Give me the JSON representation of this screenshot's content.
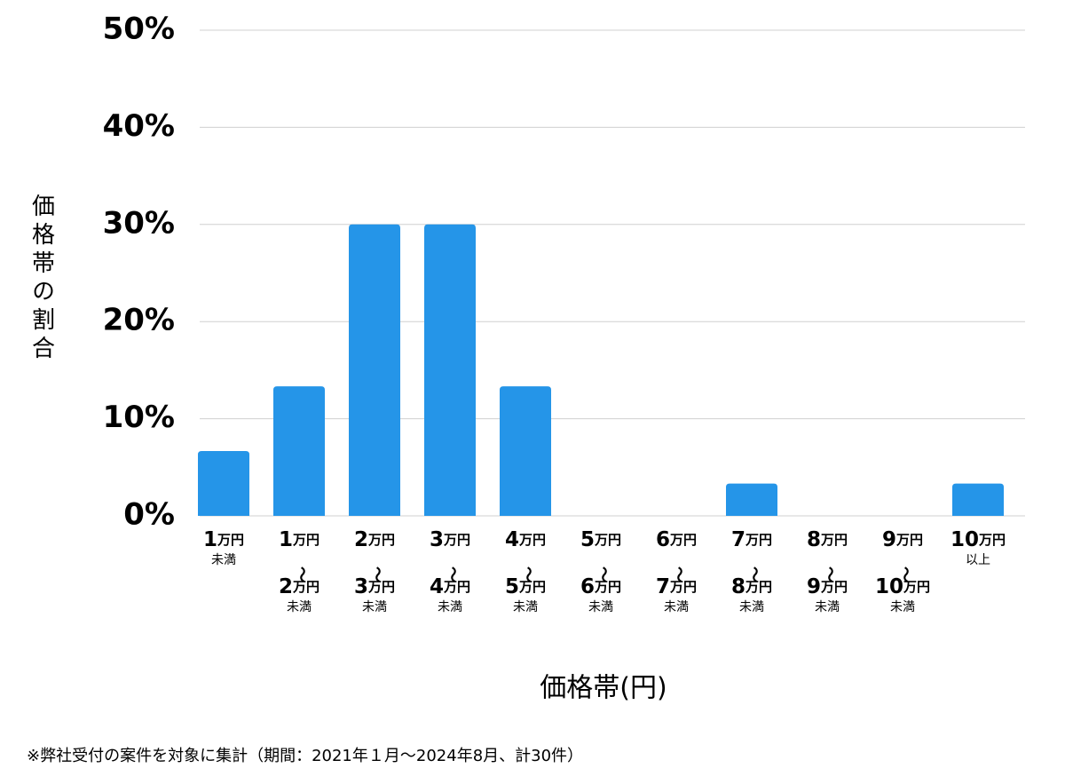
{
  "chart_data": {
    "type": "bar",
    "y_axis_label": "価格帯の割合",
    "x_axis_label": "価格帯(円)",
    "footnote": "※弊社受付の案件を対象に集計（期間：2021年１月〜2024年8月、計30件）",
    "categories": [
      "1万円\n未満",
      "1万円\n〜\n2万円\n未満",
      "2万円\n〜\n3万円\n未満",
      "3万円\n〜\n4万円\n未満",
      "4万円\n〜\n5万円\n未満",
      "5万円\n〜\n6万円\n未満",
      "6万円\n〜\n7万円\n未満",
      "7万円\n〜\n8万円\n未満",
      "8万円\n〜\n9万円\n未満",
      "9万円\n〜\n10万円\n未満",
      "10万円\n以上"
    ],
    "values": [
      6.67,
      13.33,
      30,
      30,
      13.33,
      0,
      0,
      3.33,
      0,
      0,
      3.33
    ],
    "color": "#2595e8",
    "ylim": [
      0,
      50
    ],
    "yticks": [
      {
        "value": 0,
        "label": "0%"
      },
      {
        "value": 10,
        "label": "10%"
      },
      {
        "value": 20,
        "label": "20%"
      },
      {
        "value": 30,
        "label": "30%"
      },
      {
        "value": 40,
        "label": "40%"
      },
      {
        "value": 50,
        "label": "50%"
      }
    ],
    "grid": true
  }
}
